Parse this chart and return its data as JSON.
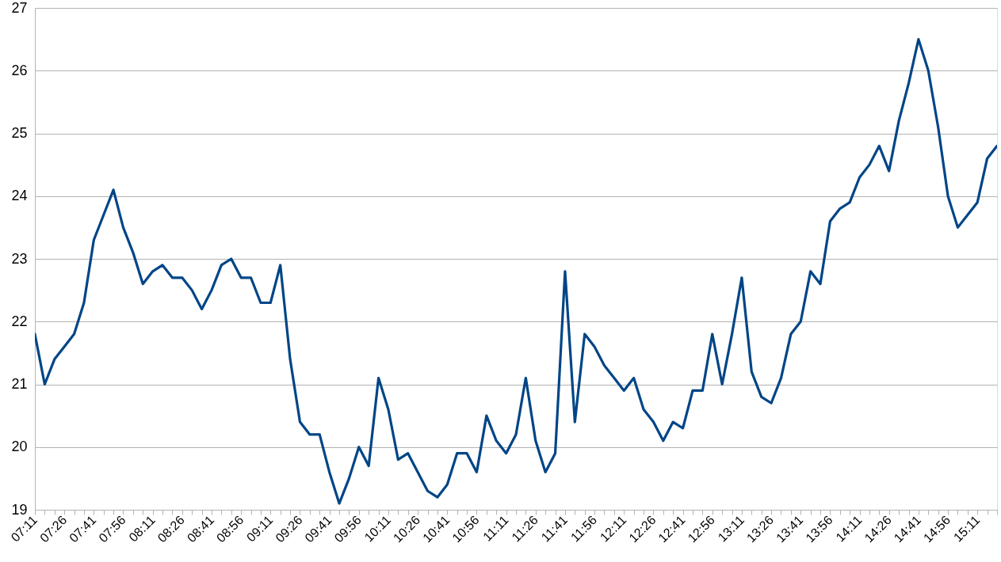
{
  "chart_data": {
    "type": "line",
    "categories": [
      "07:11",
      null,
      null,
      "07:26",
      null,
      null,
      "07:41",
      null,
      null,
      "07:56",
      null,
      null,
      "08:11",
      null,
      null,
      "08:26",
      null,
      null,
      "08:41",
      null,
      null,
      "08:56",
      null,
      null,
      "09:11",
      null,
      null,
      "09:26",
      null,
      null,
      "09:41",
      null,
      null,
      "09:56",
      null,
      null,
      "10:11",
      null,
      null,
      "10:26",
      null,
      null,
      "10:41",
      null,
      null,
      "10:56",
      null,
      null,
      "11:11",
      null,
      null,
      "11:26",
      null,
      null,
      "11:41",
      null,
      null,
      "11:56",
      null,
      null,
      "12:11",
      null,
      null,
      "12:26",
      null,
      null,
      "12:41",
      null,
      null,
      "12:56",
      null,
      null,
      "13:11",
      null,
      null,
      "13:26",
      null,
      null,
      "13:41",
      null,
      null,
      "13:56",
      null,
      null,
      "14:11",
      null,
      null,
      "14:26",
      null,
      null,
      "14:41",
      null,
      null,
      "14:56",
      null,
      null,
      "15:11",
      null,
      null
    ],
    "series": [
      {
        "color": "#004586",
        "values": [
          21.8,
          21.0,
          21.4,
          21.6,
          21.8,
          22.3,
          23.3,
          23.7,
          24.1,
          23.5,
          23.1,
          22.6,
          22.8,
          22.9,
          22.7,
          22.7,
          22.5,
          22.2,
          22.5,
          22.9,
          23.0,
          22.7,
          22.7,
          22.3,
          22.3,
          22.9,
          21.4,
          20.4,
          20.2,
          20.2,
          19.6,
          19.1,
          19.5,
          20.0,
          19.7,
          21.1,
          20.6,
          19.8,
          19.9,
          19.6,
          19.3,
          19.2,
          19.4,
          19.9,
          19.9,
          19.6,
          20.5,
          20.1,
          19.9,
          20.2,
          21.1,
          20.1,
          19.6,
          19.9,
          22.8,
          20.4,
          21.8,
          21.6,
          21.3,
          21.1,
          20.9,
          21.1,
          20.6,
          20.4,
          20.1,
          20.4,
          20.3,
          20.9,
          20.9,
          21.8,
          21.0,
          21.8,
          22.7,
          21.2,
          20.8,
          20.7,
          21.1,
          21.8,
          22.0,
          22.8,
          22.6,
          23.6,
          23.8,
          23.9,
          24.3,
          24.5,
          24.8,
          24.4,
          25.2,
          25.8,
          26.5,
          26.0,
          25.1,
          24.0,
          23.5,
          23.7,
          23.9,
          24.6,
          24.8
        ]
      }
    ],
    "ylim": [
      19,
      27
    ],
    "yticks": [
      19,
      20,
      21,
      22,
      23,
      24,
      25,
      26,
      27
    ],
    "grid": "y",
    "line_style": "solid"
  }
}
